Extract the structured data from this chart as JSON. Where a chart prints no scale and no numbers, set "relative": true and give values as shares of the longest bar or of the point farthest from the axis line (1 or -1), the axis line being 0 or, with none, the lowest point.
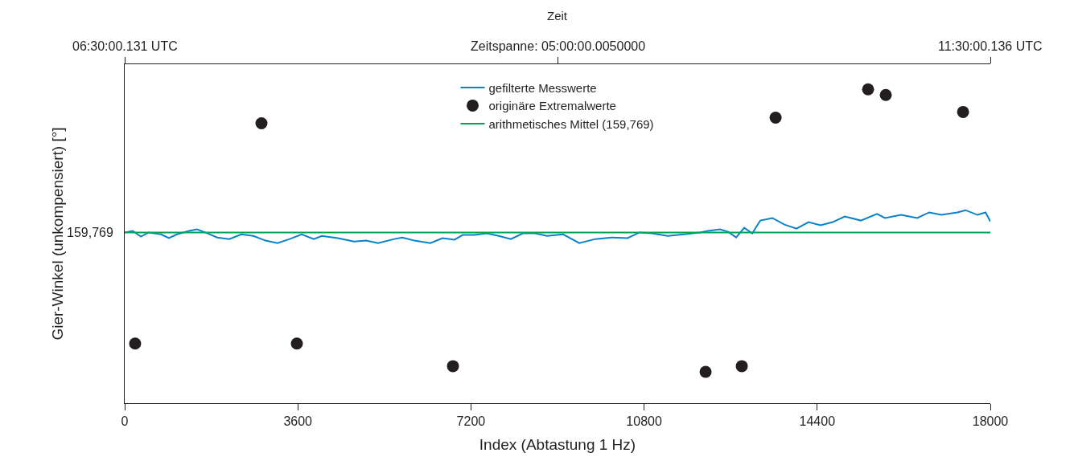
{
  "chart_data": {
    "type": "line",
    "relative": true,
    "xlabel": "Index (Abtastung 1 Hz)",
    "ylabel": "Gier-Winkel (unkompensiert) [°]",
    "xlim": [
      0,
      18000
    ],
    "xticks": [
      0,
      3600,
      7200,
      10800,
      14400,
      18000
    ],
    "grid": false,
    "legend": "top",
    "marker": "none",
    "line_style": "solid",
    "annotations": [
      "Zeit",
      "06:30:00.131 UTC",
      "Zeitspanne: 05:00:00.0050000",
      "11:30:00.136 UTC",
      "159,769"
    ],
    "series": [
      {
        "name": "gefilterte Messwerte",
        "color": "#0a82c8",
        "x": [
          0,
          167,
          335,
          502,
          753,
          920,
          1087,
          1338,
          1506,
          1673,
          1924,
          2175,
          2426,
          2677,
          2928,
          3179,
          3430,
          3681,
          3932,
          4099,
          4433,
          4768,
          5019,
          5270,
          5605,
          5772,
          6023,
          6357,
          6608,
          6859,
          7027,
          7278,
          7529,
          7779,
          8030,
          8281,
          8532,
          8783,
          9118,
          9452,
          9787,
          10121,
          10456,
          10707,
          10958,
          11293,
          11627,
          11962,
          12129,
          12380,
          12548,
          12715,
          12882,
          13049,
          13217,
          13468,
          13719,
          13970,
          14220,
          14471,
          14722,
          14973,
          15308,
          15643,
          15810,
          16144,
          16479,
          16730,
          16981,
          17316,
          17483,
          17734,
          17901,
          18000
        ],
        "values": [
          0.544,
          0.549,
          0.531,
          0.544,
          0.538,
          0.526,
          0.538,
          0.549,
          0.554,
          0.544,
          0.528,
          0.523,
          0.538,
          0.533,
          0.518,
          0.51,
          0.523,
          0.538,
          0.523,
          0.533,
          0.526,
          0.515,
          0.518,
          0.51,
          0.523,
          0.528,
          0.518,
          0.51,
          0.526,
          0.521,
          0.536,
          0.536,
          0.541,
          0.533,
          0.523,
          0.541,
          0.541,
          0.533,
          0.538,
          0.51,
          0.523,
          0.528,
          0.526,
          0.544,
          0.541,
          0.533,
          0.538,
          0.544,
          0.549,
          0.554,
          0.546,
          0.528,
          0.559,
          0.541,
          0.582,
          0.59,
          0.569,
          0.556,
          0.577,
          0.567,
          0.577,
          0.595,
          0.582,
          0.603,
          0.59,
          0.6,
          0.59,
          0.608,
          0.6,
          0.608,
          0.615,
          0.6,
          0.608,
          0.579
        ]
      },
      {
        "name": "originäre Extremalwerte",
        "type": "scatter",
        "marker": "circle",
        "color": "#231f20",
        "x": [
          217,
          2844,
          3580,
          6826,
          12079,
          12832,
          13535,
          15458,
          15826,
          17433
        ],
        "values": [
          0.19,
          0.892,
          0.19,
          0.118,
          0.1,
          0.118,
          0.91,
          1.0,
          0.982,
          0.928
        ]
      },
      {
        "name": "arithmetisches Mittel (159,769)",
        "type": "line",
        "color": "#00a651",
        "x": [
          0,
          18000
        ],
        "values": [
          0.544,
          0.544
        ]
      }
    ]
  }
}
